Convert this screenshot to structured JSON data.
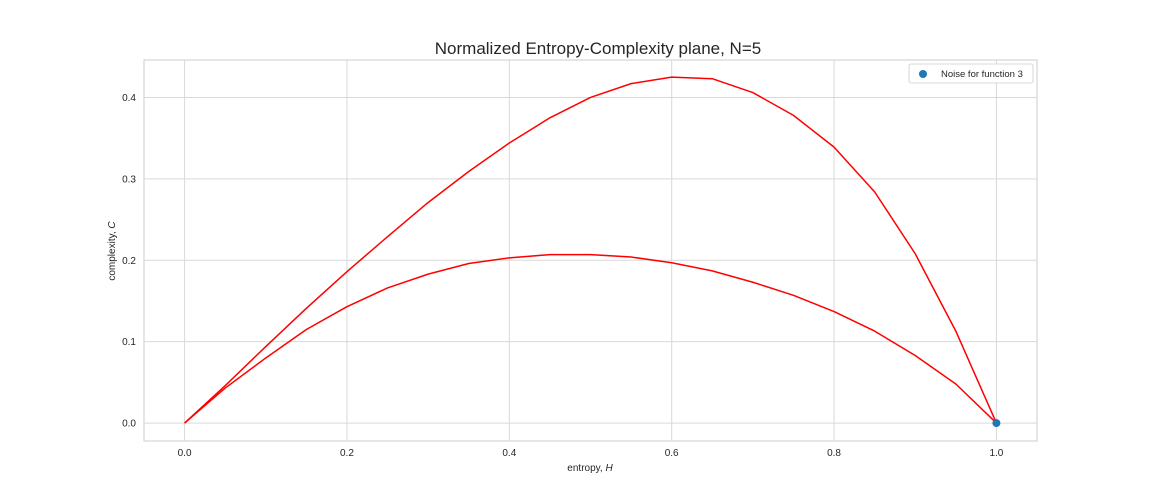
{
  "chart_data": {
    "type": "line",
    "title": "Normalized Entropy-Complexity plane, N=5",
    "xlabel": "entropy, ",
    "xlabel_symbol": "H",
    "ylabel": "complexity, ",
    "ylabel_symbol": "C",
    "xlim": [
      -0.05,
      1.05
    ],
    "ylim": [
      -0.022,
      0.446
    ],
    "xticks": [
      "0.0",
      "0.2",
      "0.4",
      "0.6",
      "0.8",
      "1.0"
    ],
    "yticks": [
      "0.0",
      "0.1",
      "0.2",
      "0.3",
      "0.4"
    ],
    "grid": true,
    "legend_position": "top-right",
    "colors": {
      "curve": "#ff0000",
      "point": "#1f77b4",
      "grid": "#d9d9d9"
    },
    "series": [
      {
        "type": "line",
        "x": [
          0.0,
          0.05,
          0.1,
          0.15,
          0.2,
          0.25,
          0.3,
          0.35,
          0.4,
          0.45,
          0.5,
          0.55,
          0.6,
          0.65,
          0.7,
          0.75,
          0.8,
          0.85,
          0.9,
          0.95,
          1.0
        ],
        "y": [
          0.0,
          0.046,
          0.094,
          0.141,
          0.186,
          0.229,
          0.271,
          0.309,
          0.344,
          0.375,
          0.4,
          0.417,
          0.425,
          0.423,
          0.406,
          0.378,
          0.339,
          0.284,
          0.208,
          0.113,
          0.0
        ]
      },
      {
        "type": "line",
        "x": [
          0.0,
          0.05,
          0.1,
          0.15,
          0.2,
          0.25,
          0.3,
          0.35,
          0.4,
          0.45,
          0.5,
          0.55,
          0.6,
          0.65,
          0.7,
          0.75,
          0.8,
          0.85,
          0.9,
          0.95,
          1.0
        ],
        "y": [
          0.0,
          0.043,
          0.08,
          0.115,
          0.143,
          0.166,
          0.183,
          0.196,
          0.203,
          0.207,
          0.207,
          0.204,
          0.197,
          0.187,
          0.173,
          0.157,
          0.137,
          0.113,
          0.083,
          0.048,
          0.0
        ]
      },
      {
        "type": "scatter",
        "name": "Noise for function 3",
        "x": [
          1.0
        ],
        "y": [
          0.0
        ]
      }
    ]
  }
}
